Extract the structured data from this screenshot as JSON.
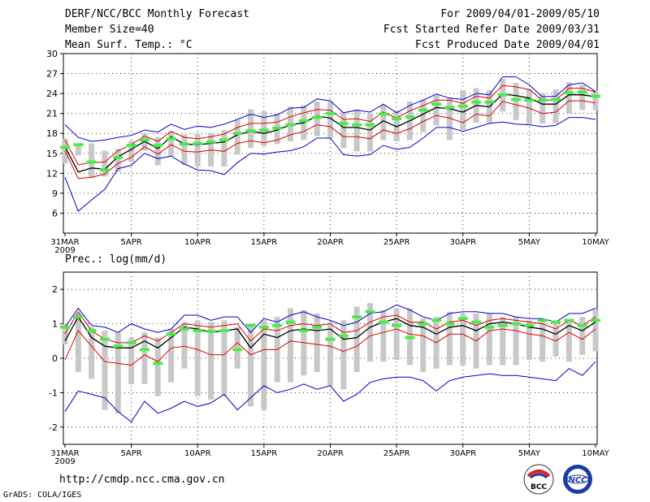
{
  "header": {
    "title": "DERF/NCC/BCC Monthly Forecast",
    "member_size": "Member Size=40",
    "variable1": "Mean Surf. Temp.: °C",
    "period": "For 2009/04/01-2009/05/10",
    "refer_date": "Fcst Started Refer Date 2009/03/31",
    "produced_date": "Fcst Produced Date 2009/04/01"
  },
  "footer": {
    "url": "http://cmdp.ncc.cma.gov.cn",
    "credit": "GrADS: COLA/IGES",
    "logo_bcc": "BCC",
    "logo_ncc": "NCC"
  },
  "colors": {
    "ensemble_mean": "#000000",
    "spread": "#dd0000",
    "extreme": "#0000cc",
    "climatology": "#44ee44",
    "members_bar": "#c8c8c8"
  },
  "chart_data": [
    {
      "type": "line",
      "title": "Mean Surf. Temp.: °C",
      "xlabel": "",
      "ylabel": "",
      "ylim": [
        3,
        30
      ],
      "yticks": [
        6,
        9,
        12,
        15,
        18,
        21,
        24,
        27,
        30
      ],
      "xlim": [
        0,
        40
      ],
      "x_ticks": [
        {
          "day": 0,
          "label": "31MAR",
          "sub": "2009"
        },
        {
          "day": 5,
          "label": "5APR"
        },
        {
          "day": 10,
          "label": "10APR"
        },
        {
          "day": 15,
          "label": "15APR"
        },
        {
          "day": 20,
          "label": "20APR"
        },
        {
          "day": 25,
          "label": "25APR"
        },
        {
          "day": 30,
          "label": "30APR"
        },
        {
          "day": 35,
          "label": "5MAY"
        },
        {
          "day": 40,
          "label": "10MAY"
        }
      ],
      "days_start": 1,
      "series": [
        {
          "name": "ensemble mean",
          "role": "mean",
          "values": [
            16.0,
            12.2,
            12.8,
            12.6,
            14.5,
            15.6,
            16.8,
            15.7,
            17.5,
            16.4,
            16.3,
            16.5,
            16.7,
            17.8,
            18.3,
            18.0,
            18.5,
            19.3,
            19.6,
            20.6,
            20.3,
            18.9,
            18.9,
            18.5,
            19.9,
            19.0,
            19.9,
            20.9,
            21.9,
            21.7,
            21.2,
            22.2,
            22.0,
            23.9,
            23.7,
            23.3,
            22.4,
            22.4,
            23.8,
            23.8,
            23.5
          ]
        },
        {
          "name": "mean + spread",
          "role": "spread",
          "values": [
            17.0,
            13.3,
            13.6,
            13.7,
            15.4,
            16.3,
            17.6,
            16.8,
            18.3,
            17.4,
            17.2,
            17.5,
            17.9,
            18.9,
            19.5,
            19.5,
            19.7,
            20.5,
            21.1,
            21.6,
            21.5,
            20.1,
            20.2,
            19.8,
            21.2,
            20.3,
            21.4,
            22.2,
            23.0,
            23.0,
            22.5,
            23.6,
            23.3,
            25.2,
            25.0,
            24.6,
            23.0,
            23.0,
            24.8,
            24.8,
            24.2
          ]
        },
        {
          "name": "mean - spread",
          "role": "spread",
          "values": [
            15.4,
            11.2,
            11.4,
            11.9,
            13.5,
            14.4,
            16.0,
            14.9,
            16.3,
            15.3,
            15.2,
            15.5,
            15.3,
            16.5,
            16.9,
            16.6,
            17.0,
            17.8,
            18.3,
            19.3,
            19.0,
            17.5,
            17.5,
            17.2,
            18.5,
            18.0,
            18.7,
            19.8,
            20.7,
            20.3,
            19.6,
            20.9,
            20.6,
            22.8,
            22.3,
            21.8,
            21.0,
            21.2,
            22.9,
            22.9,
            22.6
          ]
        },
        {
          "name": "maximum",
          "role": "extreme",
          "values": [
            19.3,
            17.4,
            16.8,
            17.0,
            17.4,
            17.7,
            18.5,
            18.2,
            19.4,
            18.6,
            19.1,
            18.9,
            19.4,
            20.1,
            20.9,
            20.4,
            20.8,
            21.8,
            21.9,
            23.2,
            22.9,
            21.1,
            21.5,
            21.2,
            22.4,
            21.1,
            22.2,
            23.0,
            23.9,
            23.3,
            23.1,
            24.0,
            23.8,
            26.5,
            26.5,
            25.3,
            23.5,
            23.6,
            25.3,
            25.6,
            24.3
          ]
        },
        {
          "name": "minimum",
          "role": "extreme",
          "values": [
            11.4,
            6.3,
            8.0,
            9.6,
            12.7,
            13.2,
            15.0,
            14.2,
            14.6,
            13.4,
            12.5,
            12.4,
            11.8,
            13.6,
            15.0,
            14.9,
            15.2,
            15.4,
            16.0,
            17.3,
            17.3,
            14.8,
            14.6,
            14.8,
            16.2,
            15.6,
            15.9,
            17.3,
            18.9,
            18.9,
            18.3,
            18.9,
            19.5,
            19.7,
            19.4,
            19.3,
            19.0,
            19.2,
            20.4,
            20.4,
            20.1
          ]
        }
      ],
      "climatology": [
        15.9,
        16.3,
        13.7,
        12.5,
        14.4,
        16.2,
        17.0,
        16.2,
        17.2,
        16.4,
        16.5,
        16.7,
        17.0,
        18.0,
        18.4,
        18.5,
        18.8,
        19.3,
        19.9,
        20.4,
        21.0,
        19.5,
        19.3,
        19.3,
        20.9,
        20.2,
        20.5,
        21.5,
        22.4,
        21.9,
        22.1,
        22.7,
        22.7,
        23.8,
        23.1,
        23.0,
        23.0,
        23.1,
        24.1,
        24.2,
        23.6
      ],
      "members_range": [
        [
          13.5,
          17.2
        ],
        [
          14.7,
          16.3
        ],
        [
          11.3,
          16.5
        ],
        [
          11.5,
          15.4
        ],
        [
          12.2,
          15.7
        ],
        [
          13.7,
          16.9
        ],
        [
          15.4,
          18.0
        ],
        [
          13.2,
          17.4
        ],
        [
          14.6,
          18.3
        ],
        [
          13.2,
          17.8
        ],
        [
          13.0,
          17.9
        ],
        [
          13.0,
          18.0
        ],
        [
          13.0,
          18.5
        ],
        [
          14.8,
          20.0
        ],
        [
          15.8,
          21.6
        ],
        [
          16.1,
          21.3
        ],
        [
          16.4,
          21.0
        ],
        [
          16.8,
          22.0
        ],
        [
          17.0,
          22.2
        ],
        [
          17.6,
          22.8
        ],
        [
          17.3,
          22.8
        ],
        [
          15.8,
          21.2
        ],
        [
          15.3,
          21.6
        ],
        [
          15.3,
          21.0
        ],
        [
          17.0,
          22.3
        ],
        [
          16.8,
          21.4
        ],
        [
          17.0,
          22.8
        ],
        [
          18.2,
          23.1
        ],
        [
          19.2,
          23.7
        ],
        [
          17.0,
          23.4
        ],
        [
          18.5,
          24.5
        ],
        [
          19.6,
          24.8
        ],
        [
          19.6,
          24.5
        ],
        [
          21.3,
          26.2
        ],
        [
          20.0,
          25.6
        ],
        [
          19.4,
          24.7
        ],
        [
          19.5,
          24.0
        ],
        [
          19.5,
          24.6
        ],
        [
          21.0,
          25.7
        ],
        [
          21.5,
          25.3
        ],
        [
          21.5,
          24.5
        ]
      ]
    },
    {
      "type": "line",
      "title": "Prec.: log(mm/d)",
      "xlabel": "",
      "ylabel": "",
      "ylim": [
        -2.5,
        2.5
      ],
      "yticks": [
        -2,
        -1,
        0,
        1,
        2
      ],
      "xlim": [
        0,
        40
      ],
      "x_ticks": [
        {
          "day": 0,
          "label": "31MAR",
          "sub": "2009"
        },
        {
          "day": 5,
          "label": "5APR"
        },
        {
          "day": 10,
          "label": "10APR"
        },
        {
          "day": 15,
          "label": "15APR"
        },
        {
          "day": 20,
          "label": "20APR"
        },
        {
          "day": 25,
          "label": "25APR"
        },
        {
          "day": 30,
          "label": "30APR"
        },
        {
          "day": 35,
          "label": "5MAY"
        },
        {
          "day": 40,
          "label": "10MAY"
        }
      ],
      "days_start": 1,
      "series": [
        {
          "name": "ensemble mean",
          "role": "mean",
          "values": [
            0.5,
            1.2,
            0.6,
            0.35,
            0.3,
            0.3,
            0.5,
            0.3,
            0.6,
            0.9,
            0.85,
            0.75,
            0.8,
            0.85,
            0.3,
            0.7,
            0.6,
            0.8,
            0.85,
            0.8,
            0.85,
            0.55,
            0.6,
            0.9,
            1.05,
            1.15,
            0.95,
            0.9,
            0.7,
            0.9,
            0.95,
            0.8,
            1.0,
            1.05,
            1.0,
            0.9,
            0.85,
            0.7,
            0.95,
            0.8,
            1.05
          ]
        },
        {
          "name": "mean + spread",
          "role": "spread",
          "values": [
            0.7,
            1.35,
            0.8,
            0.55,
            0.45,
            0.45,
            0.65,
            0.5,
            0.75,
            1.0,
            0.95,
            0.9,
            0.95,
            1.0,
            0.5,
            0.85,
            0.8,
            0.95,
            1.0,
            0.95,
            1.0,
            0.75,
            0.8,
            1.05,
            1.2,
            1.25,
            1.05,
            1.05,
            0.85,
            1.05,
            1.1,
            0.95,
            1.1,
            1.15,
            1.1,
            1.05,
            1.0,
            0.85,
            1.1,
            0.95,
            1.2
          ]
        },
        {
          "name": "mean - spread",
          "role": "spread",
          "values": [
            -0.05,
            0.8,
            0.35,
            -0.1,
            -0.15,
            -0.2,
            0.1,
            -0.1,
            0.3,
            0.35,
            0.25,
            0.1,
            0.1,
            0.45,
            0.1,
            0.25,
            0.25,
            0.5,
            0.45,
            0.4,
            0.35,
            0.2,
            0.35,
            0.65,
            0.75,
            0.85,
            0.7,
            0.65,
            0.45,
            0.7,
            0.7,
            0.5,
            0.8,
            0.85,
            0.8,
            0.7,
            0.65,
            0.5,
            0.75,
            0.55,
            0.85
          ]
        },
        {
          "name": "maximum",
          "role": "extreme",
          "values": [
            0.9,
            1.45,
            0.95,
            0.9,
            0.75,
            1.0,
            0.85,
            0.75,
            0.85,
            1.25,
            1.25,
            1.1,
            1.2,
            1.2,
            0.75,
            1.15,
            1.05,
            1.25,
            1.35,
            1.2,
            1.1,
            0.95,
            1.05,
            1.3,
            1.35,
            1.55,
            1.4,
            1.2,
            1.1,
            1.3,
            1.35,
            1.35,
            1.3,
            1.3,
            1.2,
            1.15,
            1.15,
            1.05,
            1.3,
            1.3,
            1.45
          ]
        },
        {
          "name": "minimum",
          "role": "extreme",
          "values": [
            -1.55,
            -0.95,
            -1.05,
            -1.15,
            -1.55,
            -1.85,
            -1.25,
            -1.6,
            -1.45,
            -1.25,
            -1.4,
            -1.3,
            -1.05,
            -1.5,
            -1.15,
            -0.8,
            -1.0,
            -0.9,
            -0.75,
            -0.9,
            -0.8,
            -1.25,
            -1.05,
            -0.7,
            -0.6,
            -0.55,
            -0.55,
            -0.65,
            -0.95,
            -0.65,
            -0.55,
            -0.5,
            -0.45,
            -0.5,
            -0.5,
            -0.55,
            -0.6,
            -0.65,
            -0.3,
            -0.5,
            -0.1
          ]
        }
      ],
      "climatology": [
        0.9,
        1.2,
        0.8,
        0.55,
        0.35,
        0.45,
        0.25,
        -0.15,
        0.7,
        0.85,
        0.8,
        0.78,
        0.8,
        0.25,
        0.95,
        0.9,
        0.95,
        1.05,
        0.8,
        0.9,
        0.55,
        0.65,
        1.2,
        1.35,
        1.05,
        0.95,
        0.6,
        1.0,
        1.1,
        1.0,
        1.15,
        1.05,
        0.9,
        0.95,
        1.0,
        0.95,
        1.1,
        1.05,
        1.1,
        0.95,
        1.1
      ],
      "members_range": [
        [
          0.4,
          1.0
        ],
        [
          -0.4,
          1.3
        ],
        [
          -0.6,
          0.9
        ],
        [
          -1.5,
          0.8
        ],
        [
          -1.6,
          0.75
        ],
        [
          -0.75,
          0.6
        ],
        [
          -0.75,
          0.75
        ],
        [
          -1.1,
          0.6
        ],
        [
          -0.7,
          0.85
        ],
        [
          -0.3,
          1.05
        ],
        [
          -1.1,
          1.1
        ],
        [
          -1.2,
          1.05
        ],
        [
          -1.1,
          1.1
        ],
        [
          -0.3,
          0.9
        ],
        [
          -1.4,
          1.0
        ],
        [
          -1.5,
          1.1
        ],
        [
          -0.7,
          1.2
        ],
        [
          -0.7,
          1.45
        ],
        [
          -0.5,
          1.4
        ],
        [
          -0.4,
          1.3
        ],
        [
          -0.8,
          1.05
        ],
        [
          -0.9,
          1.1
        ],
        [
          -0.4,
          1.5
        ],
        [
          -0.1,
          1.6
        ],
        [
          -0.1,
          1.4
        ],
        [
          -0.05,
          1.45
        ],
        [
          -0.2,
          1.45
        ],
        [
          -0.4,
          1.15
        ],
        [
          -0.3,
          1.2
        ],
        [
          -0.2,
          1.35
        ],
        [
          -0.2,
          1.3
        ],
        [
          -0.3,
          1.3
        ],
        [
          -0.2,
          1.3
        ],
        [
          -0.2,
          1.2
        ],
        [
          -0.2,
          1.2
        ],
        [
          -0.05,
          1.1
        ],
        [
          -0.1,
          1.15
        ],
        [
          0.05,
          1.1
        ],
        [
          -0.1,
          1.1
        ],
        [
          0.1,
          1.2
        ],
        [
          0.2,
          1.4
        ]
      ]
    }
  ]
}
